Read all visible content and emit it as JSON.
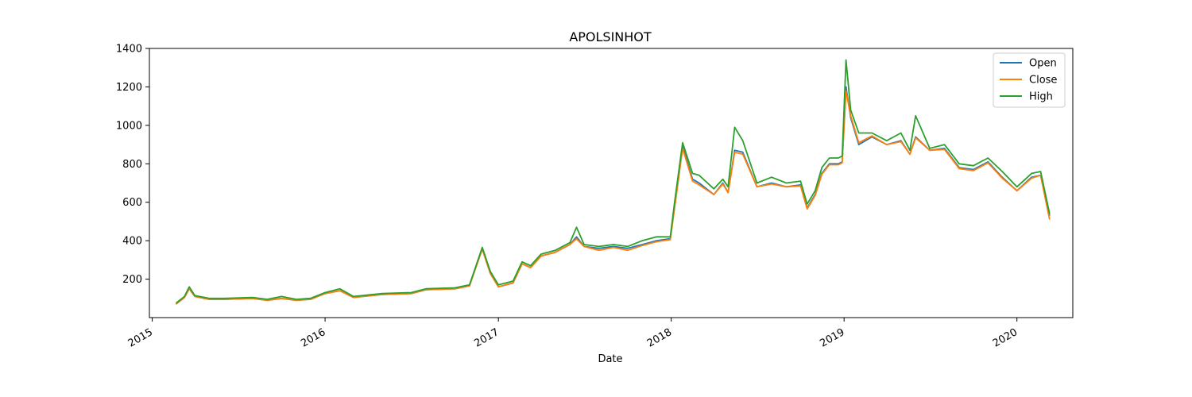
{
  "chart_data": {
    "type": "line",
    "title": "APOLSINHOT",
    "xlabel": "Date",
    "ylabel": "",
    "xlim": [
      "2014-12-26",
      "2020-04-28"
    ],
    "ylim": [
      0,
      1400
    ],
    "grid": false,
    "legend_position": "top-right",
    "x_ticks": [
      "2015-01-01",
      "2016-01-01",
      "2017-01-01",
      "2018-01-01",
      "2019-01-01",
      "2020-01-01"
    ],
    "x_tick_labels": [
      "2015",
      "2016",
      "2017",
      "2018",
      "2019",
      "2020"
    ],
    "y_ticks": [
      200,
      400,
      600,
      800,
      1000,
      1200,
      1400
    ],
    "y_tick_labels": [
      "200",
      "400",
      "600",
      "800",
      "1000",
      "1200",
      "1400"
    ],
    "x": [
      "2015-02-20",
      "2015-03-10",
      "2015-03-20",
      "2015-04-01",
      "2015-05-01",
      "2015-06-01",
      "2015-08-01",
      "2015-09-01",
      "2015-10-01",
      "2015-11-01",
      "2015-12-01",
      "2016-01-01",
      "2016-02-01",
      "2016-03-01",
      "2016-05-01",
      "2016-07-01",
      "2016-08-01",
      "2016-10-01",
      "2016-11-01",
      "2016-11-28",
      "2016-12-15",
      "2017-01-01",
      "2017-02-01",
      "2017-02-20",
      "2017-03-10",
      "2017-04-01",
      "2017-05-01",
      "2017-06-01",
      "2017-06-15",
      "2017-07-01",
      "2017-08-01",
      "2017-09-01",
      "2017-10-01",
      "2017-11-01",
      "2017-12-01",
      "2017-12-30",
      "2018-01-08",
      "2018-01-25",
      "2018-02-15",
      "2018-03-01",
      "2018-04-01",
      "2018-04-20",
      "2018-05-01",
      "2018-05-15",
      "2018-06-01",
      "2018-07-01",
      "2018-08-01",
      "2018-09-01",
      "2018-10-01",
      "2018-10-15",
      "2018-11-01",
      "2018-11-15",
      "2018-12-01",
      "2018-12-20",
      "2018-12-28",
      "2019-01-05",
      "2019-01-15",
      "2019-02-01",
      "2019-03-01",
      "2019-04-01",
      "2019-05-01",
      "2019-05-20",
      "2019-06-01",
      "2019-07-01",
      "2019-08-01",
      "2019-09-01",
      "2019-10-01",
      "2019-11-01",
      "2019-12-01",
      "2020-01-01",
      "2020-02-01",
      "2020-02-20",
      "2020-03-10"
    ],
    "series": [
      {
        "name": "Open",
        "color": "#1f77b4",
        "values": [
          70,
          105,
          150,
          110,
          95,
          95,
          100,
          90,
          100,
          90,
          95,
          125,
          140,
          105,
          120,
          125,
          145,
          150,
          165,
          360,
          230,
          160,
          180,
          280,
          260,
          320,
          340,
          380,
          420,
          370,
          360,
          370,
          360,
          380,
          400,
          410,
          580,
          890,
          720,
          700,
          640,
          700,
          650,
          870,
          860,
          680,
          700,
          680,
          690,
          570,
          640,
          750,
          800,
          800,
          810,
          1200,
          1040,
          900,
          940,
          900,
          920,
          850,
          940,
          870,
          880,
          780,
          770,
          810,
          730,
          660,
          730,
          740,
          530
        ]
      },
      {
        "name": "Close",
        "color": "#ff7f0e",
        "values": [
          70,
          105,
          150,
          110,
          95,
          95,
          100,
          90,
          100,
          90,
          95,
          125,
          140,
          105,
          120,
          125,
          145,
          150,
          165,
          355,
          230,
          160,
          180,
          280,
          260,
          320,
          340,
          380,
          410,
          370,
          350,
          365,
          350,
          375,
          395,
          405,
          570,
          880,
          710,
          690,
          640,
          695,
          650,
          860,
          850,
          680,
          695,
          680,
          685,
          565,
          635,
          745,
          795,
          795,
          805,
          1180,
          1050,
          910,
          945,
          900,
          915,
          850,
          935,
          870,
          875,
          775,
          765,
          805,
          725,
          660,
          725,
          740,
          510
        ]
      },
      {
        "name": "High",
        "color": "#2ca02c",
        "values": [
          75,
          110,
          160,
          115,
          100,
          100,
          105,
          95,
          110,
          95,
          100,
          130,
          150,
          110,
          125,
          130,
          150,
          155,
          170,
          365,
          240,
          170,
          190,
          290,
          270,
          330,
          350,
          390,
          470,
          380,
          370,
          380,
          370,
          400,
          420,
          420,
          600,
          910,
          750,
          740,
          670,
          720,
          680,
          990,
          920,
          700,
          730,
          700,
          710,
          590,
          660,
          780,
          830,
          830,
          840,
          1340,
          1080,
          960,
          960,
          920,
          960,
          870,
          1050,
          880,
          900,
          800,
          790,
          830,
          760,
          680,
          750,
          760,
          540
        ]
      }
    ]
  }
}
